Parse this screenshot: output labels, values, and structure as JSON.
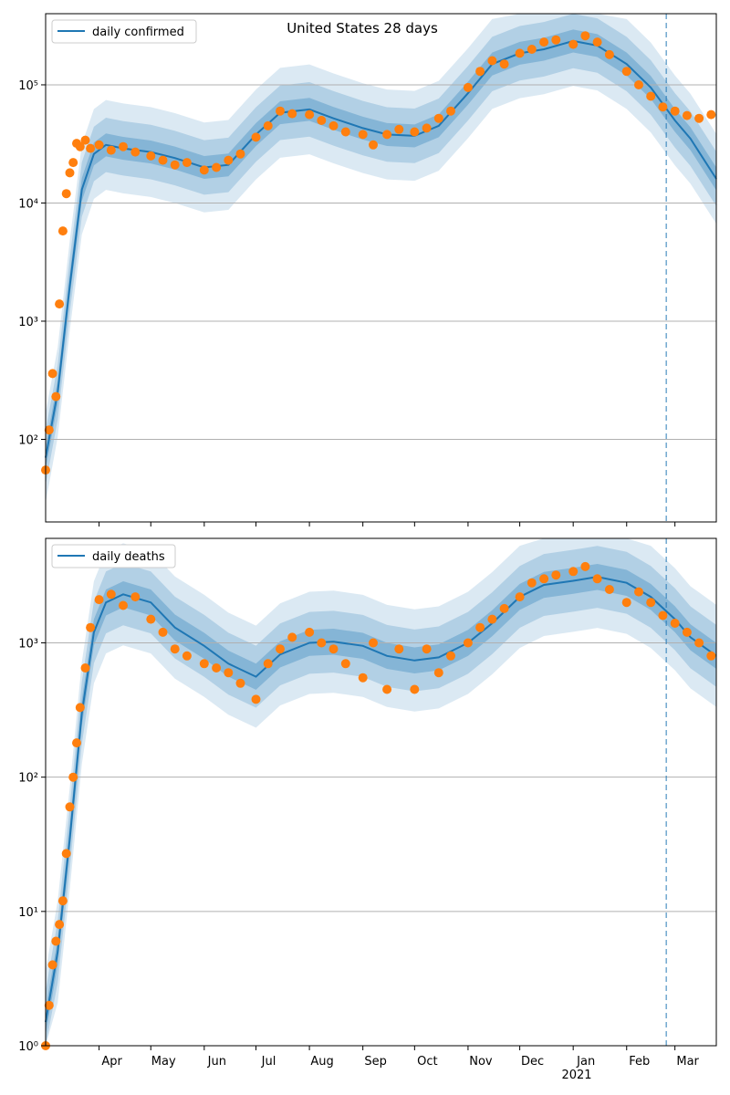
{
  "figure": {
    "title": "United States 28 days"
  },
  "colors": {
    "line": "#1f77b4",
    "points": "#ff7f0e",
    "band": "#1f77b4",
    "grid": "#b0b0b0",
    "vline": "#1f77b4"
  },
  "chart_data": [
    {
      "type": "line",
      "name": "confirmed-panel",
      "yscale": "log",
      "ylim": [
        20,
        400000
      ],
      "xlim": [
        "2020-03-01",
        "2021-03-25"
      ],
      "grid": "horizontal",
      "legend_loc": "upper left",
      "series": [
        {
          "name": "daily confirmed",
          "x": [
            "2020-03-01",
            "2020-03-08",
            "2020-03-15",
            "2020-03-22",
            "2020-03-29",
            "2020-04-05",
            "2020-04-15",
            "2020-05-01",
            "2020-05-15",
            "2020-06-01",
            "2020-06-15",
            "2020-07-01",
            "2020-07-15",
            "2020-08-01",
            "2020-08-15",
            "2020-09-01",
            "2020-09-15",
            "2020-10-01",
            "2020-10-15",
            "2020-11-01",
            "2020-11-15",
            "2020-12-01",
            "2020-12-15",
            "2021-01-01",
            "2021-01-15",
            "2021-02-01",
            "2021-02-15",
            "2021-03-01",
            "2021-03-10",
            "2021-03-25"
          ],
          "y": [
            70,
            250,
            2000,
            13000,
            26000,
            31000,
            29000,
            27000,
            24000,
            20000,
            21000,
            38000,
            58000,
            62000,
            52000,
            43000,
            38000,
            37000,
            45000,
            85000,
            150000,
            185000,
            200000,
            235000,
            215000,
            150000,
            95000,
            50000,
            35000,
            16000
          ]
        }
      ],
      "scatter": {
        "x": [
          "2020-03-01",
          "2020-03-03",
          "2020-03-05",
          "2020-03-07",
          "2020-03-09",
          "2020-03-11",
          "2020-03-13",
          "2020-03-15",
          "2020-03-17",
          "2020-03-19",
          "2020-03-21",
          "2020-03-24",
          "2020-03-27",
          "2020-04-01",
          "2020-04-08",
          "2020-04-15",
          "2020-04-22",
          "2020-05-01",
          "2020-05-08",
          "2020-05-15",
          "2020-05-22",
          "2020-06-01",
          "2020-06-08",
          "2020-06-15",
          "2020-06-22",
          "2020-07-01",
          "2020-07-08",
          "2020-07-15",
          "2020-07-22",
          "2020-08-01",
          "2020-08-08",
          "2020-08-15",
          "2020-08-22",
          "2020-09-01",
          "2020-09-07",
          "2020-09-15",
          "2020-09-22",
          "2020-10-01",
          "2020-10-08",
          "2020-10-15",
          "2020-10-22",
          "2020-11-01",
          "2020-11-08",
          "2020-11-15",
          "2020-11-22",
          "2020-12-01",
          "2020-12-08",
          "2020-12-15",
          "2020-12-22",
          "2021-01-01",
          "2021-01-08",
          "2021-01-15",
          "2021-01-22",
          "2021-02-01",
          "2021-02-08",
          "2021-02-15",
          "2021-02-22",
          "2021-03-01",
          "2021-03-08",
          "2021-03-15",
          "2021-03-22"
        ],
        "y": [
          55,
          120,
          360,
          230,
          1400,
          5800,
          12000,
          18000,
          22000,
          32000,
          30000,
          34000,
          29000,
          31000,
          28000,
          30000,
          27000,
          25000,
          23000,
          21000,
          22000,
          19000,
          20000,
          23000,
          26000,
          36000,
          45000,
          60000,
          57000,
          56000,
          50000,
          45000,
          40000,
          38000,
          31000,
          38000,
          42000,
          40000,
          43000,
          52000,
          60000,
          95000,
          130000,
          160000,
          150000,
          185000,
          200000,
          230000,
          240000,
          220000,
          260000,
          230000,
          180000,
          130000,
          100000,
          80000,
          65000,
          60000,
          55000,
          52000,
          56000
        ]
      },
      "vline_x": "2021-02-24"
    },
    {
      "type": "line",
      "name": "deaths-panel",
      "yscale": "log",
      "ylim": [
        1,
        6000
      ],
      "xlim": [
        "2020-03-01",
        "2021-03-25"
      ],
      "grid": "horizontal",
      "legend_loc": "upper left",
      "series": [
        {
          "name": "daily deaths",
          "x": [
            "2020-03-01",
            "2020-03-08",
            "2020-03-15",
            "2020-03-22",
            "2020-03-29",
            "2020-04-05",
            "2020-04-15",
            "2020-05-01",
            "2020-05-15",
            "2020-06-01",
            "2020-06-15",
            "2020-07-01",
            "2020-07-15",
            "2020-08-01",
            "2020-08-15",
            "2020-09-01",
            "2020-09-15",
            "2020-10-01",
            "2020-10-15",
            "2020-11-01",
            "2020-11-15",
            "2020-12-01",
            "2020-12-15",
            "2021-01-01",
            "2021-01-15",
            "2021-02-01",
            "2021-02-15",
            "2021-03-01",
            "2021-03-10",
            "2021-03-25"
          ],
          "y": [
            1.5,
            5,
            35,
            300,
            1200,
            2000,
            2300,
            2000,
            1300,
            950,
            700,
            560,
            820,
            1000,
            1020,
            950,
            800,
            740,
            780,
            1000,
            1400,
            2200,
            2700,
            2900,
            3100,
            2800,
            2200,
            1500,
            1100,
            800
          ]
        }
      ],
      "scatter": {
        "x": [
          "2020-03-01",
          "2020-03-03",
          "2020-03-05",
          "2020-03-07",
          "2020-03-09",
          "2020-03-11",
          "2020-03-13",
          "2020-03-15",
          "2020-03-17",
          "2020-03-19",
          "2020-03-21",
          "2020-03-24",
          "2020-03-27",
          "2020-04-01",
          "2020-04-08",
          "2020-04-15",
          "2020-04-22",
          "2020-05-01",
          "2020-05-08",
          "2020-05-15",
          "2020-05-22",
          "2020-06-01",
          "2020-06-08",
          "2020-06-15",
          "2020-06-22",
          "2020-07-01",
          "2020-07-08",
          "2020-07-15",
          "2020-07-22",
          "2020-08-01",
          "2020-08-08",
          "2020-08-15",
          "2020-08-22",
          "2020-09-01",
          "2020-09-07",
          "2020-09-15",
          "2020-09-22",
          "2020-10-01",
          "2020-10-08",
          "2020-10-15",
          "2020-10-22",
          "2020-11-01",
          "2020-11-08",
          "2020-11-15",
          "2020-11-22",
          "2020-12-01",
          "2020-12-08",
          "2020-12-15",
          "2020-12-22",
          "2021-01-01",
          "2021-01-08",
          "2021-01-15",
          "2021-01-22",
          "2021-02-01",
          "2021-02-08",
          "2021-02-15",
          "2021-02-22",
          "2021-03-01",
          "2021-03-08",
          "2021-03-15",
          "2021-03-22"
        ],
        "y": [
          1,
          2,
          4,
          6,
          8,
          12,
          27,
          60,
          100,
          180,
          330,
          650,
          1300,
          2100,
          2300,
          1900,
          2200,
          1500,
          1200,
          900,
          800,
          700,
          650,
          600,
          500,
          380,
          700,
          900,
          1100,
          1200,
          1000,
          900,
          700,
          550,
          1000,
          450,
          900,
          450,
          900,
          600,
          800,
          1000,
          1300,
          1500,
          1800,
          2200,
          2800,
          3000,
          3200,
          3400,
          3700,
          3000,
          2500,
          2000,
          2400,
          2000,
          1600,
          1400,
          1200,
          1000,
          800
        ]
      },
      "vline_x": "2021-02-24"
    }
  ],
  "x_axis": {
    "ticks": [
      {
        "date": "2020-04-01",
        "label": "Apr"
      },
      {
        "date": "2020-05-01",
        "label": "May"
      },
      {
        "date": "2020-06-01",
        "label": "Jun"
      },
      {
        "date": "2020-07-01",
        "label": "Jul"
      },
      {
        "date": "2020-08-01",
        "label": "Aug"
      },
      {
        "date": "2020-09-01",
        "label": "Sep"
      },
      {
        "date": "2020-10-01",
        "label": "Oct"
      },
      {
        "date": "2020-11-01",
        "label": "Nov"
      },
      {
        "date": "2020-12-01",
        "label": "Dec"
      },
      {
        "date": "2021-01-01",
        "label": "Jan"
      },
      {
        "date": "2021-02-01",
        "label": "Feb"
      },
      {
        "date": "2021-03-01",
        "label": "Mar"
      }
    ],
    "year_label": "2021"
  },
  "y_ticks": [
    {
      "ticks": [
        {
          "value": 100,
          "label": "10²"
        },
        {
          "value": 1000,
          "label": "10³"
        },
        {
          "value": 10000,
          "label": "10⁴"
        },
        {
          "value": 100000,
          "label": "10⁵"
        }
      ]
    },
    {
      "ticks": [
        {
          "value": 1,
          "label": "10⁰"
        },
        {
          "value": 10,
          "label": "10¹"
        },
        {
          "value": 100,
          "label": "10²"
        },
        {
          "value": 1000,
          "label": "10³"
        }
      ]
    }
  ]
}
